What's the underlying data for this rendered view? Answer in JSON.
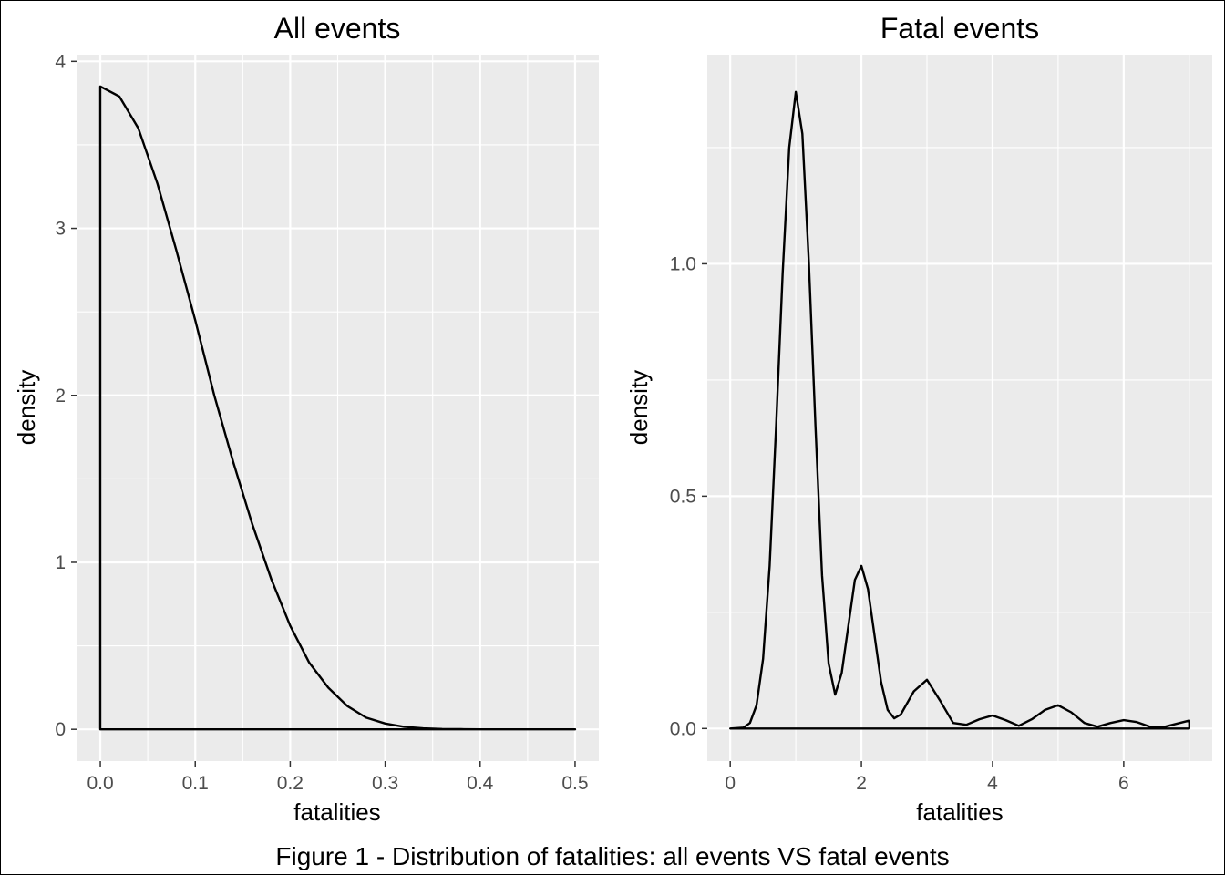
{
  "caption": "Figure 1 - Distribution of fatalities: all events VS fatal events",
  "colors": {
    "panel_bg": "#ebebeb",
    "grid": "#ffffff",
    "line": "#000000",
    "tick_text": "#4d4d4d",
    "tick_mark": "#333333"
  },
  "chart_data": [
    {
      "type": "line",
      "title": "All events",
      "xlabel": "fatalities",
      "ylabel": "density",
      "xlim": [
        -0.025,
        0.525
      ],
      "ylim": [
        -0.19,
        4.04
      ],
      "xticks": [
        0.0,
        0.1,
        0.2,
        0.3,
        0.4,
        0.5
      ],
      "xtick_labels": [
        "0.0",
        "0.1",
        "0.2",
        "0.3",
        "0.4",
        "0.5"
      ],
      "yticks": [
        0,
        1,
        2,
        3,
        4
      ],
      "ytick_labels": [
        "0",
        "1",
        "2",
        "3",
        "4"
      ],
      "grid": true,
      "closed_area": true,
      "series": [
        {
          "x": [
            0,
            0.02,
            0.04,
            0.06,
            0.08,
            0.1,
            0.12,
            0.14,
            0.16,
            0.18,
            0.2,
            0.22,
            0.24,
            0.26,
            0.28,
            0.3,
            0.32,
            0.34,
            0.36,
            0.38,
            0.4,
            0.45,
            0.5
          ],
          "values": [
            3.85,
            3.79,
            3.6,
            3.27,
            2.87,
            2.45,
            2.0,
            1.6,
            1.23,
            0.9,
            0.62,
            0.4,
            0.25,
            0.14,
            0.07,
            0.035,
            0.015,
            0.006,
            0.002,
            0.001,
            0.0,
            0.0,
            0.0
          ]
        }
      ]
    },
    {
      "type": "line",
      "title": "Fatal events",
      "xlabel": "fatalities",
      "ylabel": "density",
      "xlim": [
        -0.35,
        7.35
      ],
      "ylim": [
        -0.07,
        1.45
      ],
      "xticks": [
        0,
        2,
        4,
        6
      ],
      "xtick_labels": [
        "0",
        "2",
        "4",
        "6"
      ],
      "yticks": [
        0.0,
        0.5,
        1.0
      ],
      "ytick_labels": [
        "0.0",
        "0.5",
        "1.0"
      ],
      "grid": true,
      "closed_area": true,
      "series": [
        {
          "x": [
            0,
            0.2,
            0.3,
            0.4,
            0.5,
            0.6,
            0.7,
            0.8,
            0.9,
            1.0,
            1.1,
            1.2,
            1.3,
            1.4,
            1.5,
            1.6,
            1.7,
            1.8,
            1.9,
            2.0,
            2.1,
            2.2,
            2.3,
            2.4,
            2.5,
            2.6,
            2.8,
            3.0,
            3.2,
            3.4,
            3.6,
            3.8,
            4.0,
            4.2,
            4.4,
            4.6,
            4.8,
            5.0,
            5.2,
            5.4,
            5.6,
            5.8,
            6.0,
            6.2,
            6.4,
            6.6,
            6.8,
            7.0
          ],
          "values": [
            0.0,
            0.002,
            0.012,
            0.05,
            0.15,
            0.35,
            0.65,
            0.98,
            1.25,
            1.37,
            1.28,
            1.0,
            0.65,
            0.33,
            0.14,
            0.073,
            0.12,
            0.22,
            0.32,
            0.35,
            0.3,
            0.2,
            0.1,
            0.04,
            0.022,
            0.03,
            0.08,
            0.105,
            0.06,
            0.012,
            0.008,
            0.02,
            0.028,
            0.018,
            0.006,
            0.02,
            0.04,
            0.05,
            0.035,
            0.012,
            0.004,
            0.012,
            0.018,
            0.014,
            0.004,
            0.003,
            0.01,
            0.017
          ]
        }
      ]
    }
  ]
}
